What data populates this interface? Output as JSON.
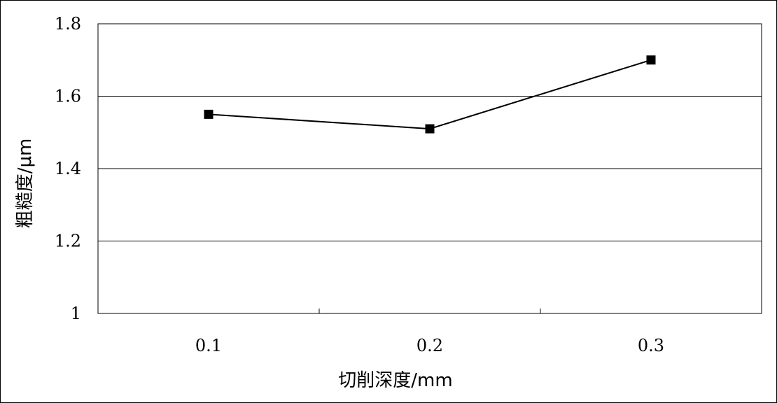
{
  "chart_data": {
    "type": "line",
    "xlabel": "切削深度/mm",
    "ylabel": "粗糙度/μm",
    "categories": [
      "0.1",
      "0.2",
      "0.3"
    ],
    "series": [
      {
        "values": [
          1.55,
          1.51,
          1.7
        ],
        "color": "#000000",
        "marker": "square"
      }
    ],
    "ylim": [
      1,
      1.8
    ],
    "yticks": [
      "1",
      "1.2",
      "1.4",
      "1.6",
      "1.8"
    ],
    "grid": true,
    "legend": "none"
  }
}
